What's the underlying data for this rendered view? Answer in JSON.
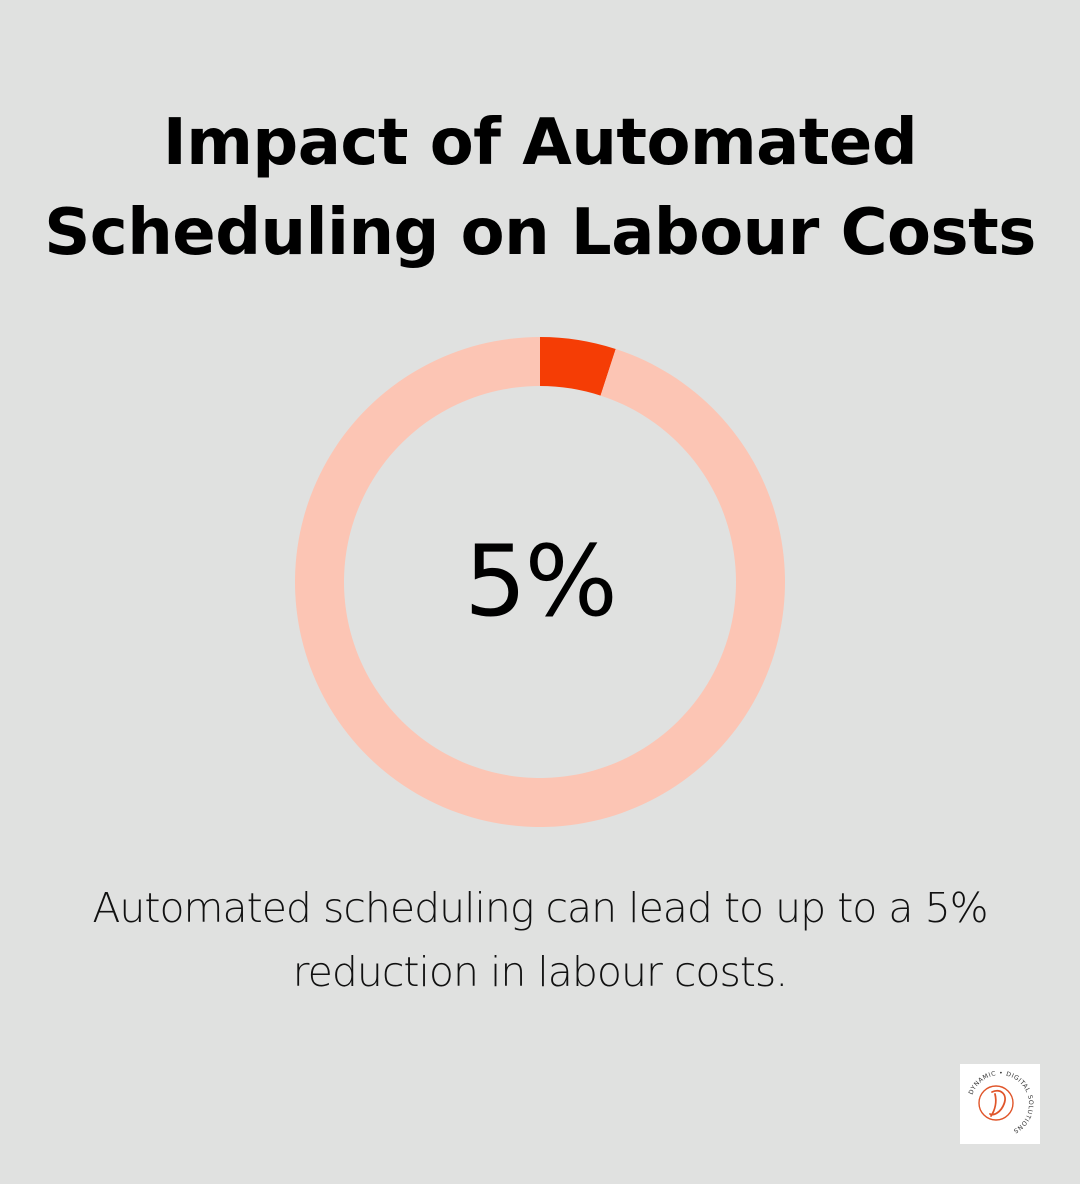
{
  "title_lines": [
    "Impact of Automated",
    "Scheduling on Labour Costs"
  ],
  "chart_data": {
    "type": "pie",
    "style": "donut",
    "slices": [
      {
        "value": 5,
        "color": "#f53d05"
      },
      {
        "value": 95,
        "color": "#fcc5b4"
      }
    ],
    "center_label": "5%"
  },
  "caption_lines": [
    "Automated scheduling can lead to up to a 5%",
    "reduction in labour costs."
  ],
  "logo": {
    "name": "dynamic-digital-solutions-logo",
    "text": "DYNAMIC • DIGITAL SOLUTIONS",
    "color": "#e0552a"
  },
  "colors": {
    "background": "#e0e1e0",
    "accent": "#f53d05",
    "track": "#fcc5b4"
  }
}
